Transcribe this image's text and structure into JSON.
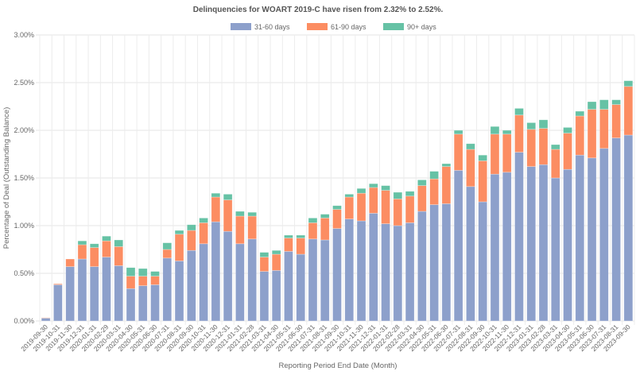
{
  "chart_data": {
    "type": "bar",
    "stacked": true,
    "title": "Delinquencies for WOART 2019-C have risen from 2.32% to 2.52%.",
    "xlabel": "Reporting Period End Date (Month)",
    "ylabel": "Percentage of Deal (Outstanding Balance)",
    "ylim": [
      0,
      3.0
    ],
    "yticks": [
      "0.00%",
      "0.50%",
      "1.00%",
      "1.50%",
      "2.00%",
      "2.50%",
      "3.00%"
    ],
    "grid": true,
    "legend_position": "top",
    "categories": [
      "2019-09-30",
      "2019-10-31",
      "2019-11-30",
      "2019-12-31",
      "2020-01-31",
      "2020-02-29",
      "2020-03-31",
      "2020-04-30",
      "2020-05-31",
      "2020-06-30",
      "2020-07-31",
      "2020-08-31",
      "2020-09-30",
      "2020-10-31",
      "2020-11-30",
      "2020-12-31",
      "2021-01-31",
      "2021-02-28",
      "2021-03-31",
      "2021-04-30",
      "2021-05-31",
      "2021-06-30",
      "2021-07-31",
      "2021-08-31",
      "2021-09-30",
      "2021-10-31",
      "2021-11-30",
      "2021-12-31",
      "2022-01-31",
      "2022-02-28",
      "2022-03-31",
      "2022-04-30",
      "2022-05-31",
      "2022-06-30",
      "2022-07-31",
      "2022-08-31",
      "2022-09-30",
      "2022-10-31",
      "2022-11-30",
      "2022-12-31",
      "2023-01-31",
      "2023-02-28",
      "2023-03-31",
      "2023-04-30",
      "2023-05-31",
      "2023-06-30",
      "2023-07-31",
      "2023-08-31",
      "2023-09-30"
    ],
    "series": [
      {
        "name": "31-60 days",
        "color": "#8da0cb",
        "values": [
          0.03,
          0.38,
          0.57,
          0.65,
          0.57,
          0.67,
          0.58,
          0.34,
          0.37,
          0.38,
          0.66,
          0.63,
          0.74,
          0.81,
          1.04,
          0.94,
          0.81,
          0.86,
          0.52,
          0.53,
          0.73,
          0.7,
          0.86,
          0.85,
          0.97,
          1.07,
          1.05,
          1.13,
          1.02,
          1.0,
          1.03,
          1.15,
          1.22,
          1.23,
          1.58,
          1.41,
          1.25,
          1.54,
          1.56,
          1.77,
          1.62,
          1.64,
          1.5,
          1.59,
          1.74,
          1.71,
          1.81,
          1.92,
          1.95
        ]
      },
      {
        "name": "61-90 days",
        "color": "#fc8d62",
        "values": [
          0.005,
          0.01,
          0.08,
          0.15,
          0.2,
          0.17,
          0.2,
          0.13,
          0.1,
          0.09,
          0.09,
          0.28,
          0.21,
          0.22,
          0.26,
          0.33,
          0.29,
          0.24,
          0.15,
          0.17,
          0.14,
          0.17,
          0.17,
          0.23,
          0.2,
          0.23,
          0.29,
          0.27,
          0.35,
          0.28,
          0.28,
          0.27,
          0.27,
          0.39,
          0.38,
          0.39,
          0.43,
          0.42,
          0.4,
          0.39,
          0.39,
          0.38,
          0.3,
          0.38,
          0.41,
          0.51,
          0.41,
          0.35,
          0.51
        ]
      },
      {
        "name": "90+ days",
        "color": "#66c2a5",
        "values": [
          0,
          0,
          0,
          0.04,
          0.04,
          0.05,
          0.07,
          0.09,
          0.08,
          0.05,
          0.07,
          0.04,
          0.06,
          0.05,
          0.04,
          0.06,
          0.05,
          0.04,
          0.05,
          0.04,
          0.03,
          0.03,
          0.05,
          0.04,
          0.04,
          0.03,
          0.05,
          0.04,
          0.05,
          0.07,
          0.05,
          0.06,
          0.08,
          0.03,
          0.04,
          0.06,
          0.06,
          0.08,
          0.04,
          0.07,
          0.07,
          0.09,
          0.05,
          0.06,
          0.05,
          0.08,
          0.1,
          0.05,
          0.06
        ]
      }
    ]
  }
}
